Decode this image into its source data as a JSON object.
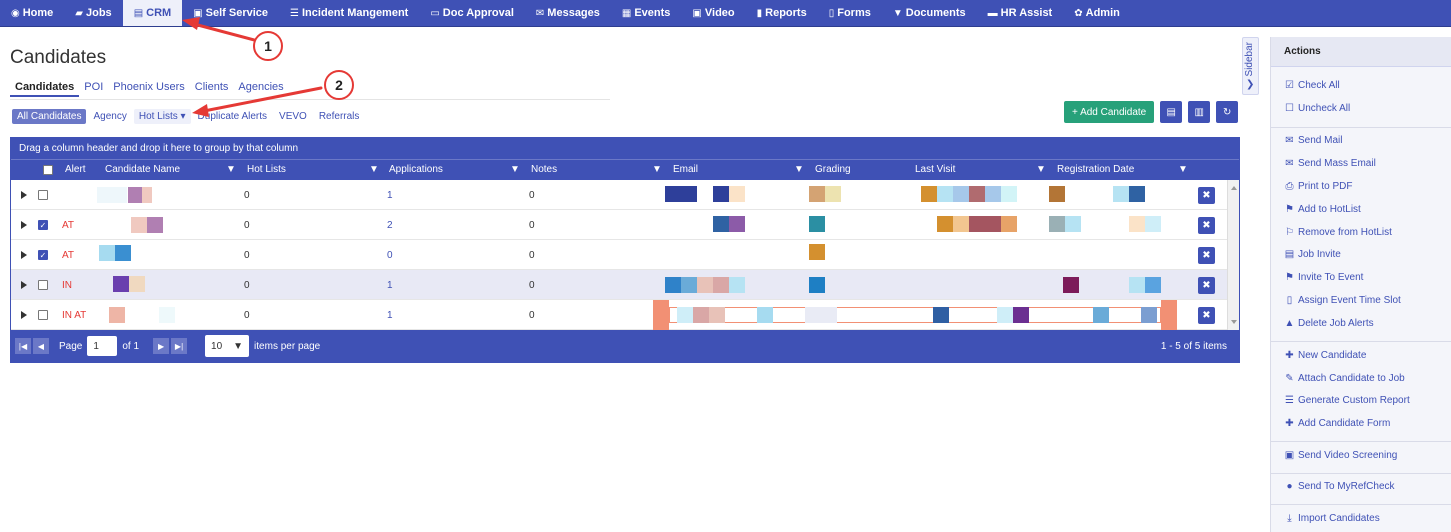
{
  "nav": {
    "items": [
      {
        "label": "Home",
        "icon": "dashboard-icon",
        "glyph": "◉"
      },
      {
        "label": "Jobs",
        "icon": "folder-icon",
        "glyph": "▰"
      },
      {
        "label": "CRM",
        "icon": "briefcase-icon",
        "glyph": "▤"
      },
      {
        "label": "Self Service",
        "icon": "card-icon",
        "glyph": "▣"
      },
      {
        "label": "Incident Mangement",
        "icon": "list-icon",
        "glyph": "☰"
      },
      {
        "label": "Doc Approval",
        "icon": "document-icon",
        "glyph": "▭"
      },
      {
        "label": "Messages",
        "icon": "envelope-icon",
        "glyph": "✉"
      },
      {
        "label": "Events",
        "icon": "calendar-icon",
        "glyph": "▦"
      },
      {
        "label": "Video",
        "icon": "video-icon",
        "glyph": "▣"
      },
      {
        "label": "Reports",
        "icon": "book-icon",
        "glyph": "▮"
      },
      {
        "label": "Forms",
        "icon": "file-icon",
        "glyph": "▯"
      },
      {
        "label": "Documents",
        "icon": "filter-icon",
        "glyph": "▼"
      },
      {
        "label": "HR Assist",
        "icon": "car-icon",
        "glyph": "▬"
      },
      {
        "label": "Admin",
        "icon": "gear-icon",
        "glyph": "✿"
      }
    ],
    "active": "CRM"
  },
  "page": {
    "title": "Candidates"
  },
  "subtabs": [
    "Candidates",
    "POI",
    "Phoenix Users",
    "Clients",
    "Agencies"
  ],
  "filters": [
    "All Candidates",
    "Agency",
    "Hot Lists ▾",
    "Duplicate Alerts",
    "VEVO",
    "Referrals"
  ],
  "toolbar": {
    "add_label": "+ Add Candidate"
  },
  "grid": {
    "group_hint": "Drag a column header and drop it here to group by that column",
    "columns": [
      "Alert",
      "Candidate Name",
      "Hot Lists",
      "Applications",
      "Notes",
      "Email",
      "Grading",
      "Last Visit",
      "Registration Date"
    ],
    "rows": [
      {
        "checked": false,
        "alert": "",
        "hotlists": "0",
        "applications": "1",
        "notes": "0"
      },
      {
        "checked": true,
        "alert": "AT",
        "hotlists": "0",
        "applications": "2",
        "notes": "0"
      },
      {
        "checked": true,
        "alert": "AT",
        "hotlists": "0",
        "applications": "0",
        "notes": "0"
      },
      {
        "checked": false,
        "alert": "IN",
        "hotlists": "0",
        "applications": "1",
        "notes": "0"
      },
      {
        "checked": false,
        "alert": "IN AT",
        "hotlists": "0",
        "applications": "1",
        "notes": "0"
      }
    ],
    "pager": {
      "page_label": "Page",
      "page_value": "1",
      "of_label": "of 1",
      "per_page_value": "10",
      "per_page_label": "items per page",
      "summary": "1 - 5 of 5 items"
    }
  },
  "sidebar_toggle": {
    "label": "Sidebar"
  },
  "actions": {
    "title": "Actions",
    "items": [
      "Check All",
      "Uncheck All",
      "Send Mail",
      "Send Mass Email",
      "Print to PDF",
      "Add to HotList",
      "Remove from HotList",
      "Job Invite",
      "Invite To Event",
      "Assign Event Time Slot",
      "Delete Job Alerts",
      "New Candidate",
      "Attach Candidate to Job",
      "Generate Custom Report",
      "Add Candidate Form",
      "Send Video Screening",
      "Send To MyRefCheck",
      "Import Candidates"
    ]
  },
  "annotations": {
    "first": "1",
    "second": "2",
    "color": "#e53935"
  },
  "colors": {
    "primary": "#3f51b5",
    "success": "#27a17a",
    "alert": "#e53935"
  }
}
